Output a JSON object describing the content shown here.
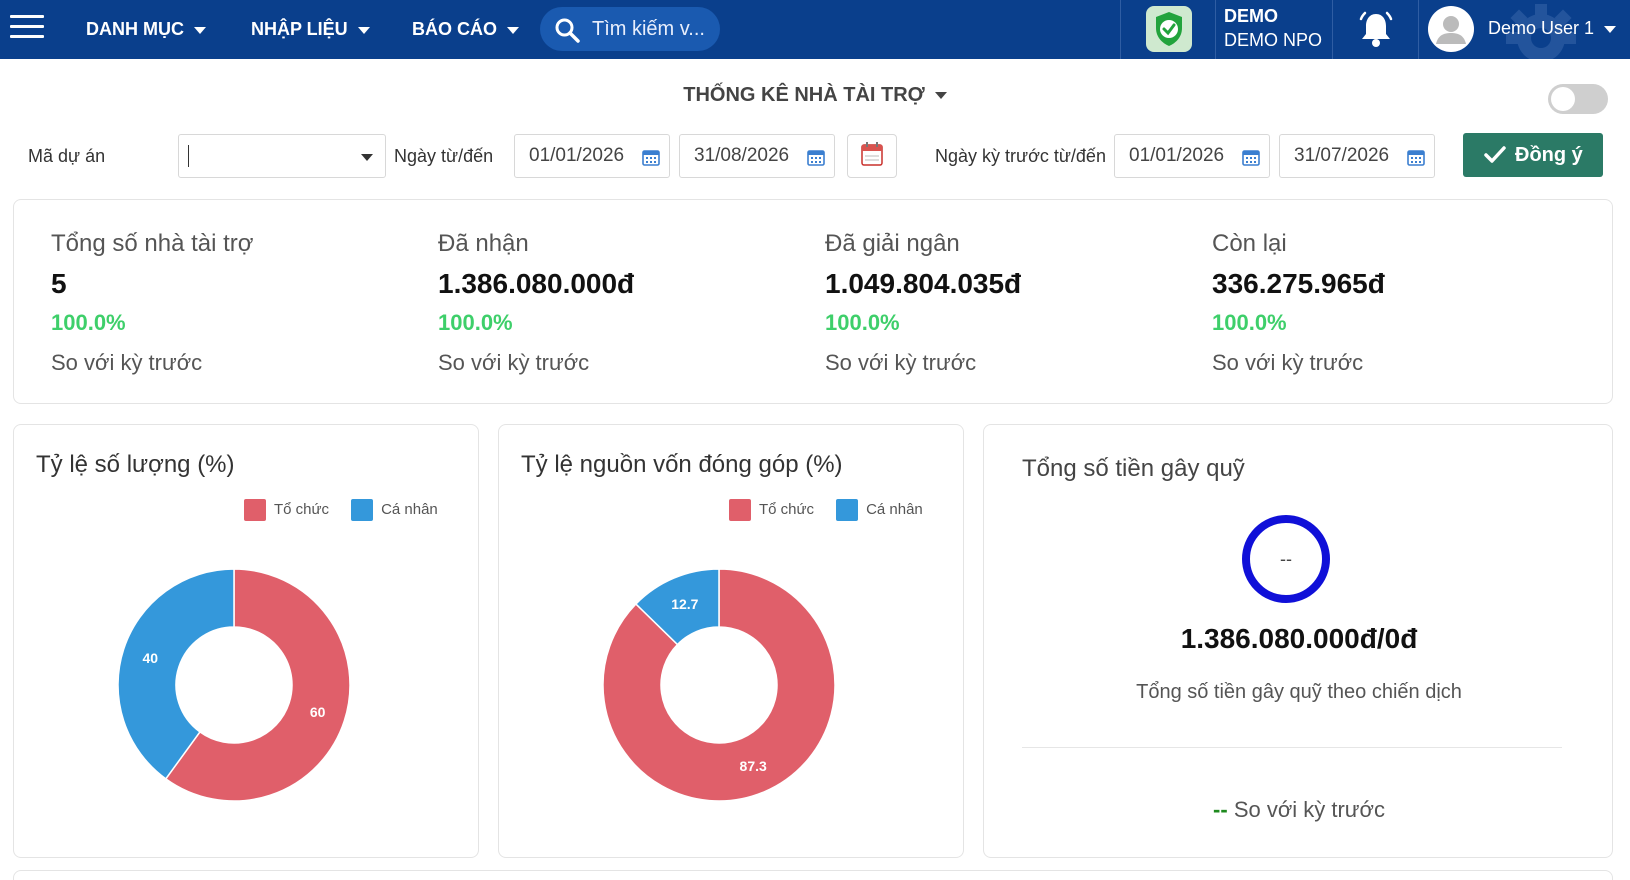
{
  "nav": {
    "menu": [
      "DANH MỤC",
      "NHẬP LIỆU",
      "BÁO CÁO"
    ],
    "search_placeholder": "Tìm kiếm v...",
    "org_code": "DEMO",
    "org_name": "DEMO NPO",
    "user_name": "Demo User 1"
  },
  "page": {
    "title": "THỐNG KÊ NHÀ TÀI TRỢ"
  },
  "filters": {
    "project_label": "Mã dự án",
    "project_value": "",
    "date_label": "Ngày từ/đến",
    "date_from": "01/01/2026",
    "date_to": "31/08/2026",
    "prev_label": "Ngày kỳ trước từ/đến",
    "prev_from": "01/01/2026",
    "prev_to": "31/07/2026",
    "submit_label": "Đồng ý"
  },
  "summary": [
    {
      "title": "Tổng số nhà tài trợ",
      "value": "5",
      "percent": "100.0%",
      "compare": "So với kỳ trước"
    },
    {
      "title": "Đã nhận",
      "value": "1.386.080.000đ",
      "percent": "100.0%",
      "compare": "So với kỳ trước"
    },
    {
      "title": "Đã giải ngân",
      "value": "1.049.804.035đ",
      "percent": "100.0%",
      "compare": "So với kỳ trước"
    },
    {
      "title": "Còn lại",
      "value": "336.275.965đ",
      "percent": "100.0%",
      "compare": "So với kỳ trước"
    }
  ],
  "colors": {
    "to_chuc": "#e05f6a",
    "ca_nhan": "#3498db",
    "navbar": "#0a3f8c",
    "accent_green": "#2b7a66",
    "percent_green": "#3ecf6a"
  },
  "chart_data": [
    {
      "type": "pie",
      "title": "Tỷ lệ số lượng (%)",
      "categories": [
        "Tổ chức",
        "Cá nhân"
      ],
      "values": [
        60,
        40
      ],
      "value_labels": [
        "60",
        "40"
      ],
      "legend": "top-right"
    },
    {
      "type": "pie",
      "title": "Tỷ lệ nguồn vốn đóng góp (%)",
      "categories": [
        "Tổ chức",
        "Cá nhân"
      ],
      "values": [
        87.3,
        12.7
      ],
      "value_labels": [
        "87.3",
        "12.7"
      ],
      "legend": "top-right"
    }
  ],
  "fundraising": {
    "title": "Tổng số tiền gây quỹ",
    "ring_text": "--",
    "value": "1.386.080.000đ/0đ",
    "caption": "Tổng số tiền gây quỹ theo chiến dịch",
    "compare_value": "--",
    "compare_label": "So với kỳ trước"
  }
}
